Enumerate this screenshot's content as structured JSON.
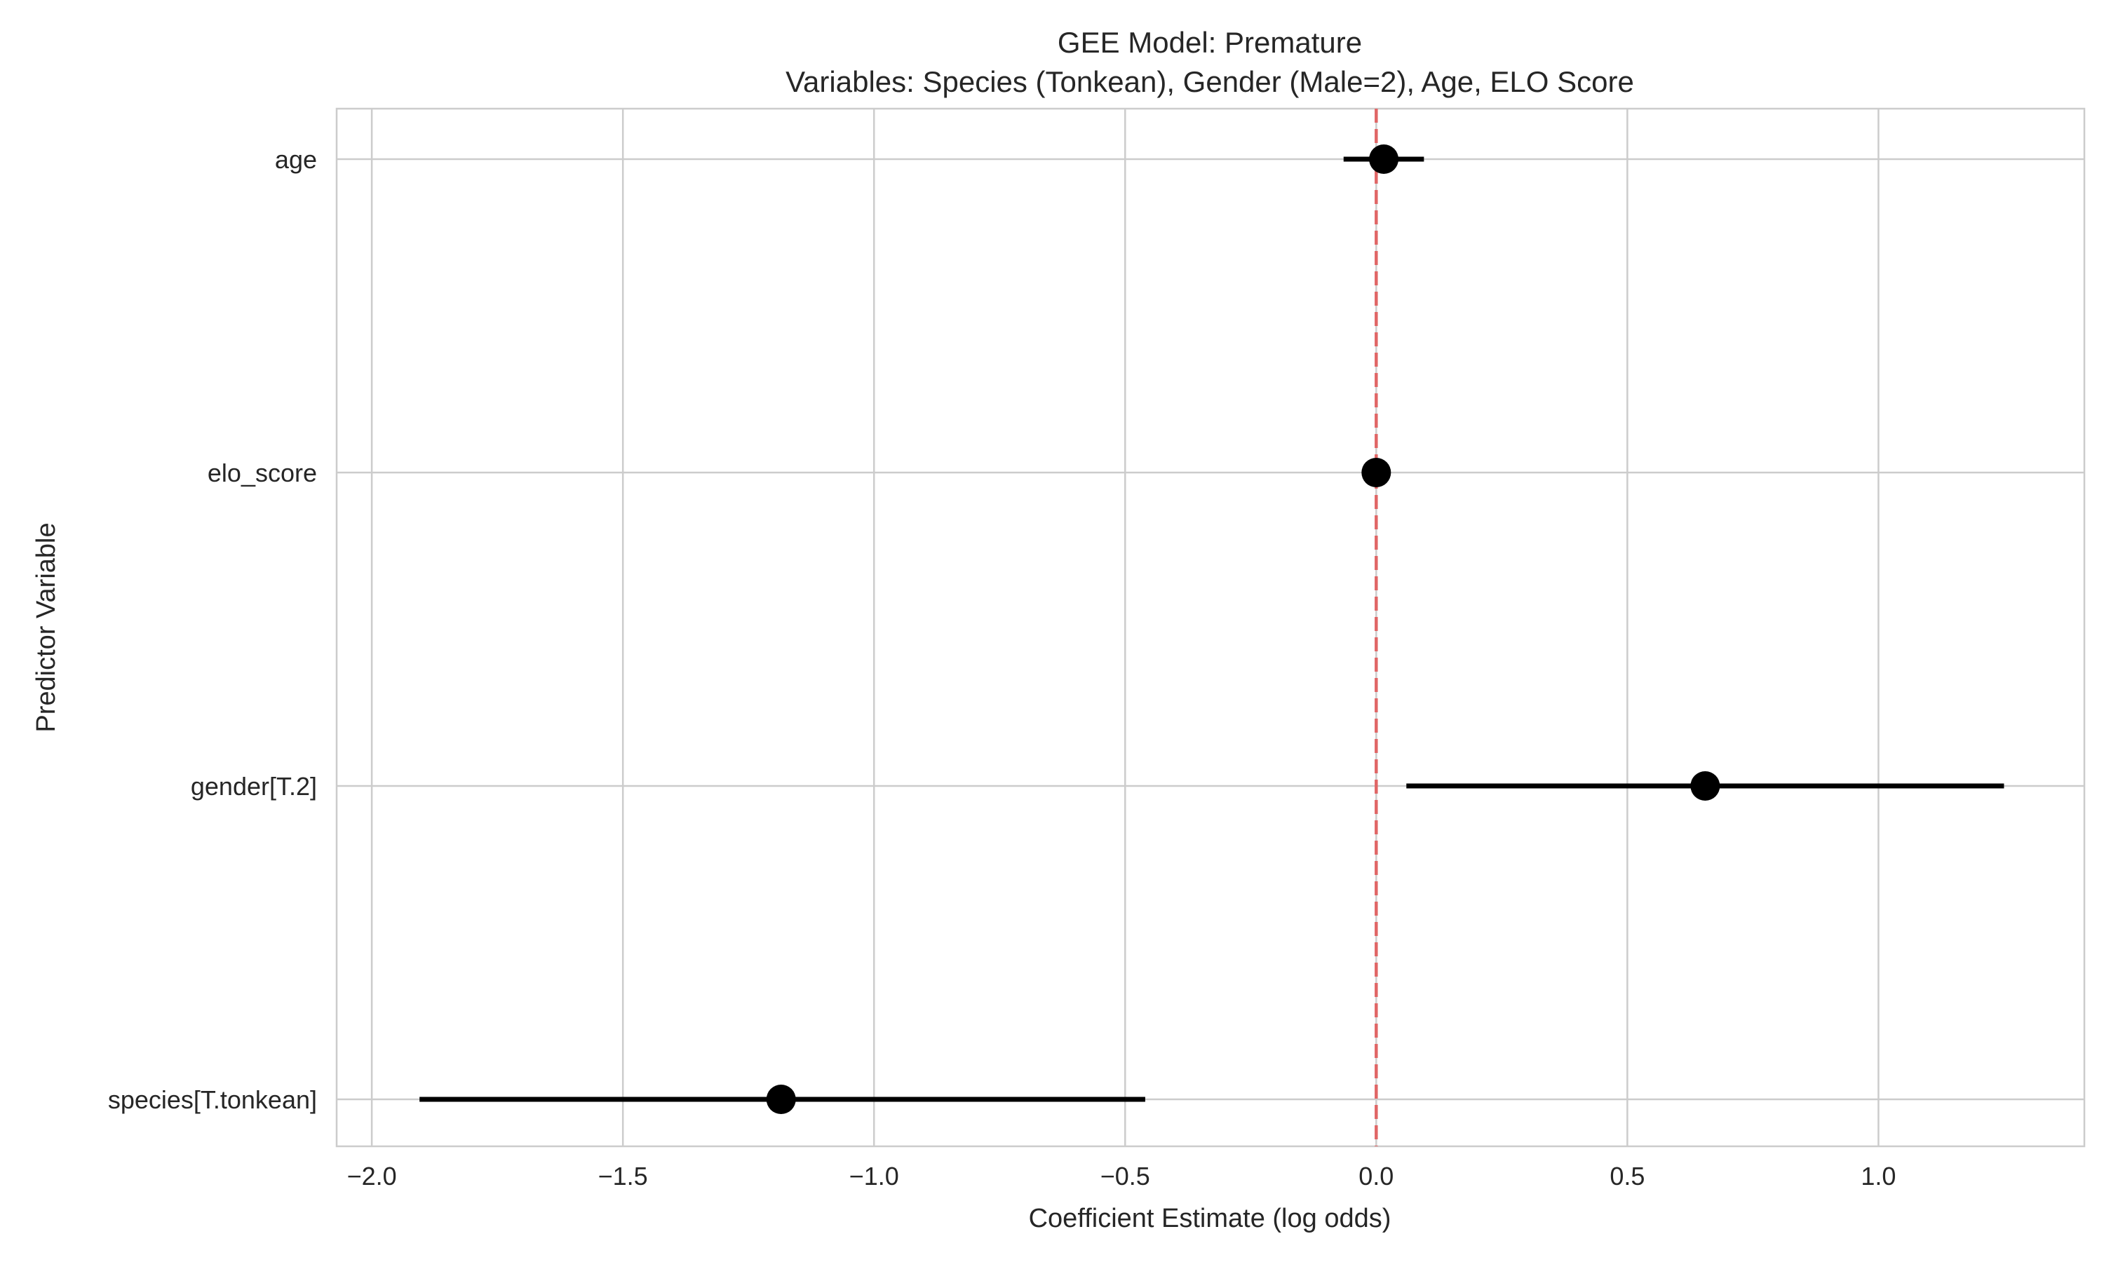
{
  "chart_data": {
    "type": "scatter",
    "subtype": "coefficient-plot",
    "title": "GEE Model: Premature",
    "subtitle": "Variables: Species (Tonkean), Gender (Male=2), Age, ELO Score",
    "xlabel": "Coefficient Estimate (log odds)",
    "ylabel": "Predictor Variable",
    "xlim": [
      -2.07,
      1.41
    ],
    "xticks": [
      -2.0,
      -1.5,
      -1.0,
      -0.5,
      0.0,
      0.5,
      1.0
    ],
    "xtick_labels": [
      "−2.0",
      "−1.5",
      "−1.0",
      "−0.5",
      "0.0",
      "0.5",
      "1.0"
    ],
    "grid": true,
    "reference_line": {
      "x": 0,
      "color": "#e06666",
      "style": "dashed"
    },
    "categories": [
      "age",
      "elo_score",
      "gender[T.2]",
      "species[T.tonkean]"
    ],
    "estimates": [
      0.015,
      0.0,
      0.655,
      -1.185
    ],
    "ci_lower": [
      -0.065,
      -0.005,
      0.06,
      -1.905
    ],
    "ci_upper": [
      0.095,
      0.005,
      1.25,
      -0.46
    ],
    "marker_color": "#000000"
  }
}
